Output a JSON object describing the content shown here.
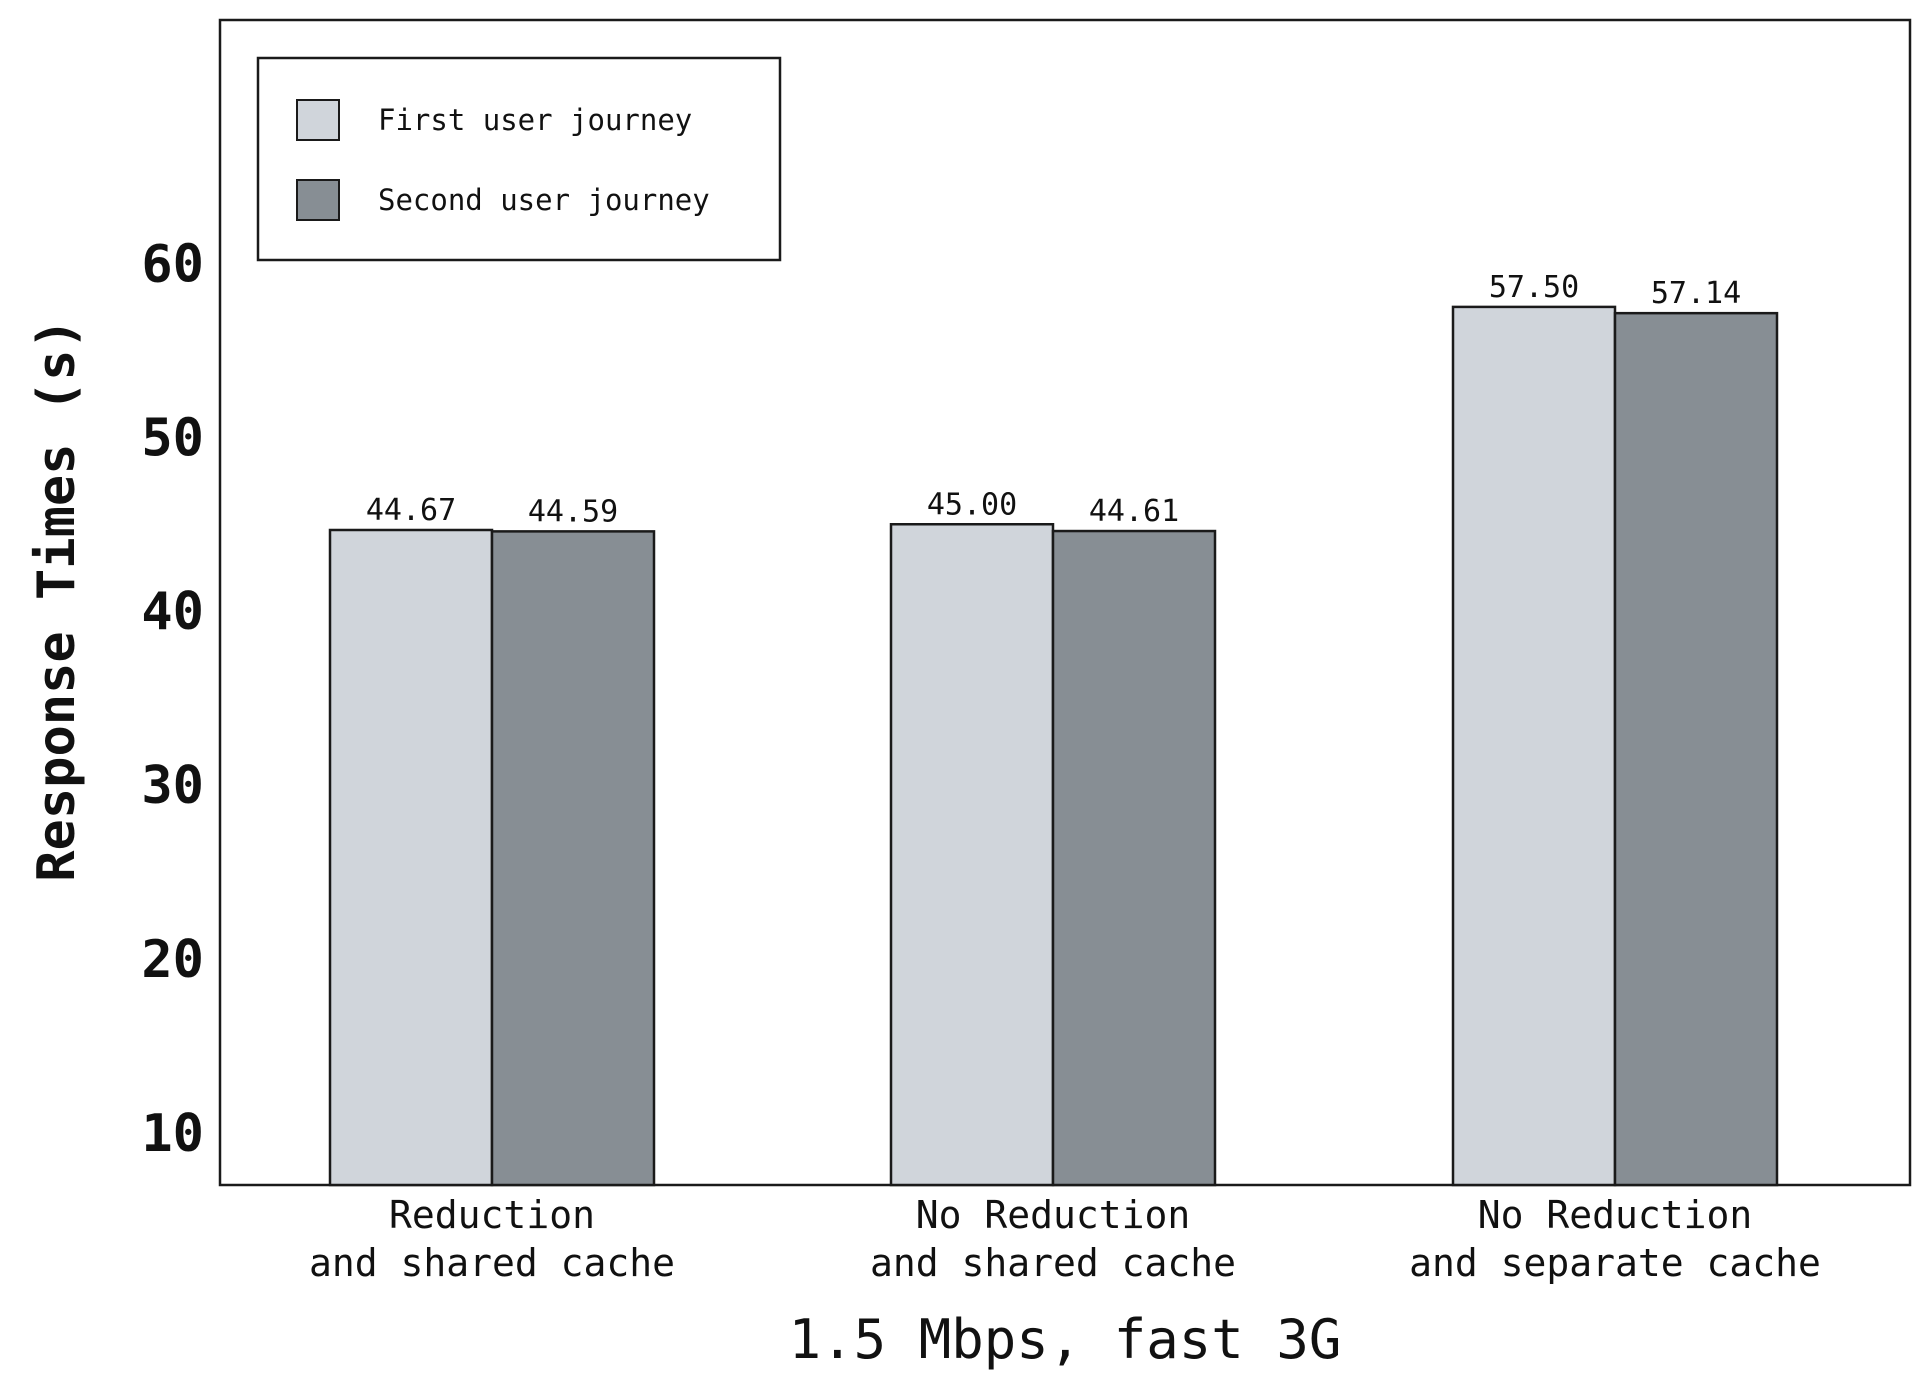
{
  "chart_data": {
    "type": "bar",
    "title": "",
    "xlabel": "1.5 Mbps, fast 3G",
    "ylabel": "Response Times (s)",
    "categories": [
      [
        "Reduction",
        "and shared cache"
      ],
      [
        "No Reduction",
        "and shared cache"
      ],
      [
        "No Reduction",
        "and separate cache"
      ]
    ],
    "series": [
      {
        "name": "First user journey",
        "values": [
          44.67,
          45.0,
          57.5
        ],
        "labels": [
          "44.67",
          "45.00",
          "57.50"
        ],
        "color": "#d0d5db"
      },
      {
        "name": "Second user journey",
        "values": [
          44.59,
          44.61,
          57.14
        ],
        "labels": [
          "44.59",
          "44.61",
          "57.14"
        ],
        "color": "#878e94"
      }
    ],
    "yticks": [
      10,
      20,
      30,
      40,
      50,
      60
    ],
    "ytick_labels": [
      "10",
      "20",
      "30",
      "40",
      "50",
      "60"
    ],
    "ylim": [
      7,
      74
    ],
    "grid": false,
    "legend_position": "top-left",
    "edge_color": "#1a1a1a"
  }
}
